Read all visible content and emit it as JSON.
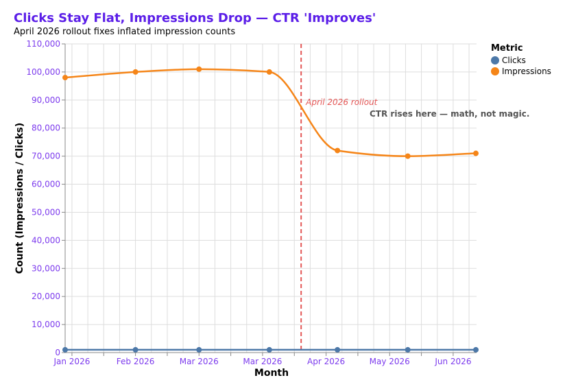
{
  "chart_data": {
    "type": "line",
    "title": "Clicks Stay Flat, Impressions Drop — CTR 'Improves'",
    "subtitle": "April 2026 rollout fixes inflated impression counts",
    "xlabel": "Month",
    "ylabel": "Count (Impressions / Clicks)",
    "x": [
      "2026-01-01",
      "2026-02-01",
      "2026-03-01",
      "2026-04-01",
      "2026-05-01",
      "2026-06-01",
      "2026-07-01"
    ],
    "series": [
      {
        "name": "Clicks",
        "color": "#4c78a8",
        "values": [
          1000,
          1000,
          1000,
          1000,
          1000,
          1000,
          1000
        ]
      },
      {
        "name": "Impressions",
        "color": "#f58518",
        "values": [
          98000,
          100000,
          101000,
          100000,
          72000,
          70000,
          71000
        ]
      }
    ],
    "ylim": [
      0,
      110000
    ],
    "yticks": [
      "0",
      "10,000",
      "20,000",
      "30,000",
      "40,000",
      "50,000",
      "60,000",
      "70,000",
      "80,000",
      "90,000",
      "100,000",
      "110,000"
    ],
    "xticks": [
      {
        "date": "2026-01-04",
        "label": "Jan 2026"
      },
      {
        "date": "2026-02-01",
        "label": "Feb 2026"
      },
      {
        "date": "2026-03-01",
        "label": "Mar 2026"
      },
      {
        "date": "2026-03-29",
        "label": "Mar 2026"
      },
      {
        "date": "2026-04-26",
        "label": "Apr 2026"
      },
      {
        "date": "2026-05-24",
        "label": "May 2026"
      },
      {
        "date": "2026-06-21",
        "label": "Jun 2026"
      }
    ],
    "grid": true,
    "legend": {
      "title": "Metric",
      "placement": "right"
    },
    "rule": {
      "date": "2026-04-15",
      "label": "April 2026 rollout",
      "color": "#e45756"
    },
    "annotation": "CTR rises here — math, not magic.",
    "axis_color": "#7c3aed",
    "title_color": "#5b1ee8"
  }
}
